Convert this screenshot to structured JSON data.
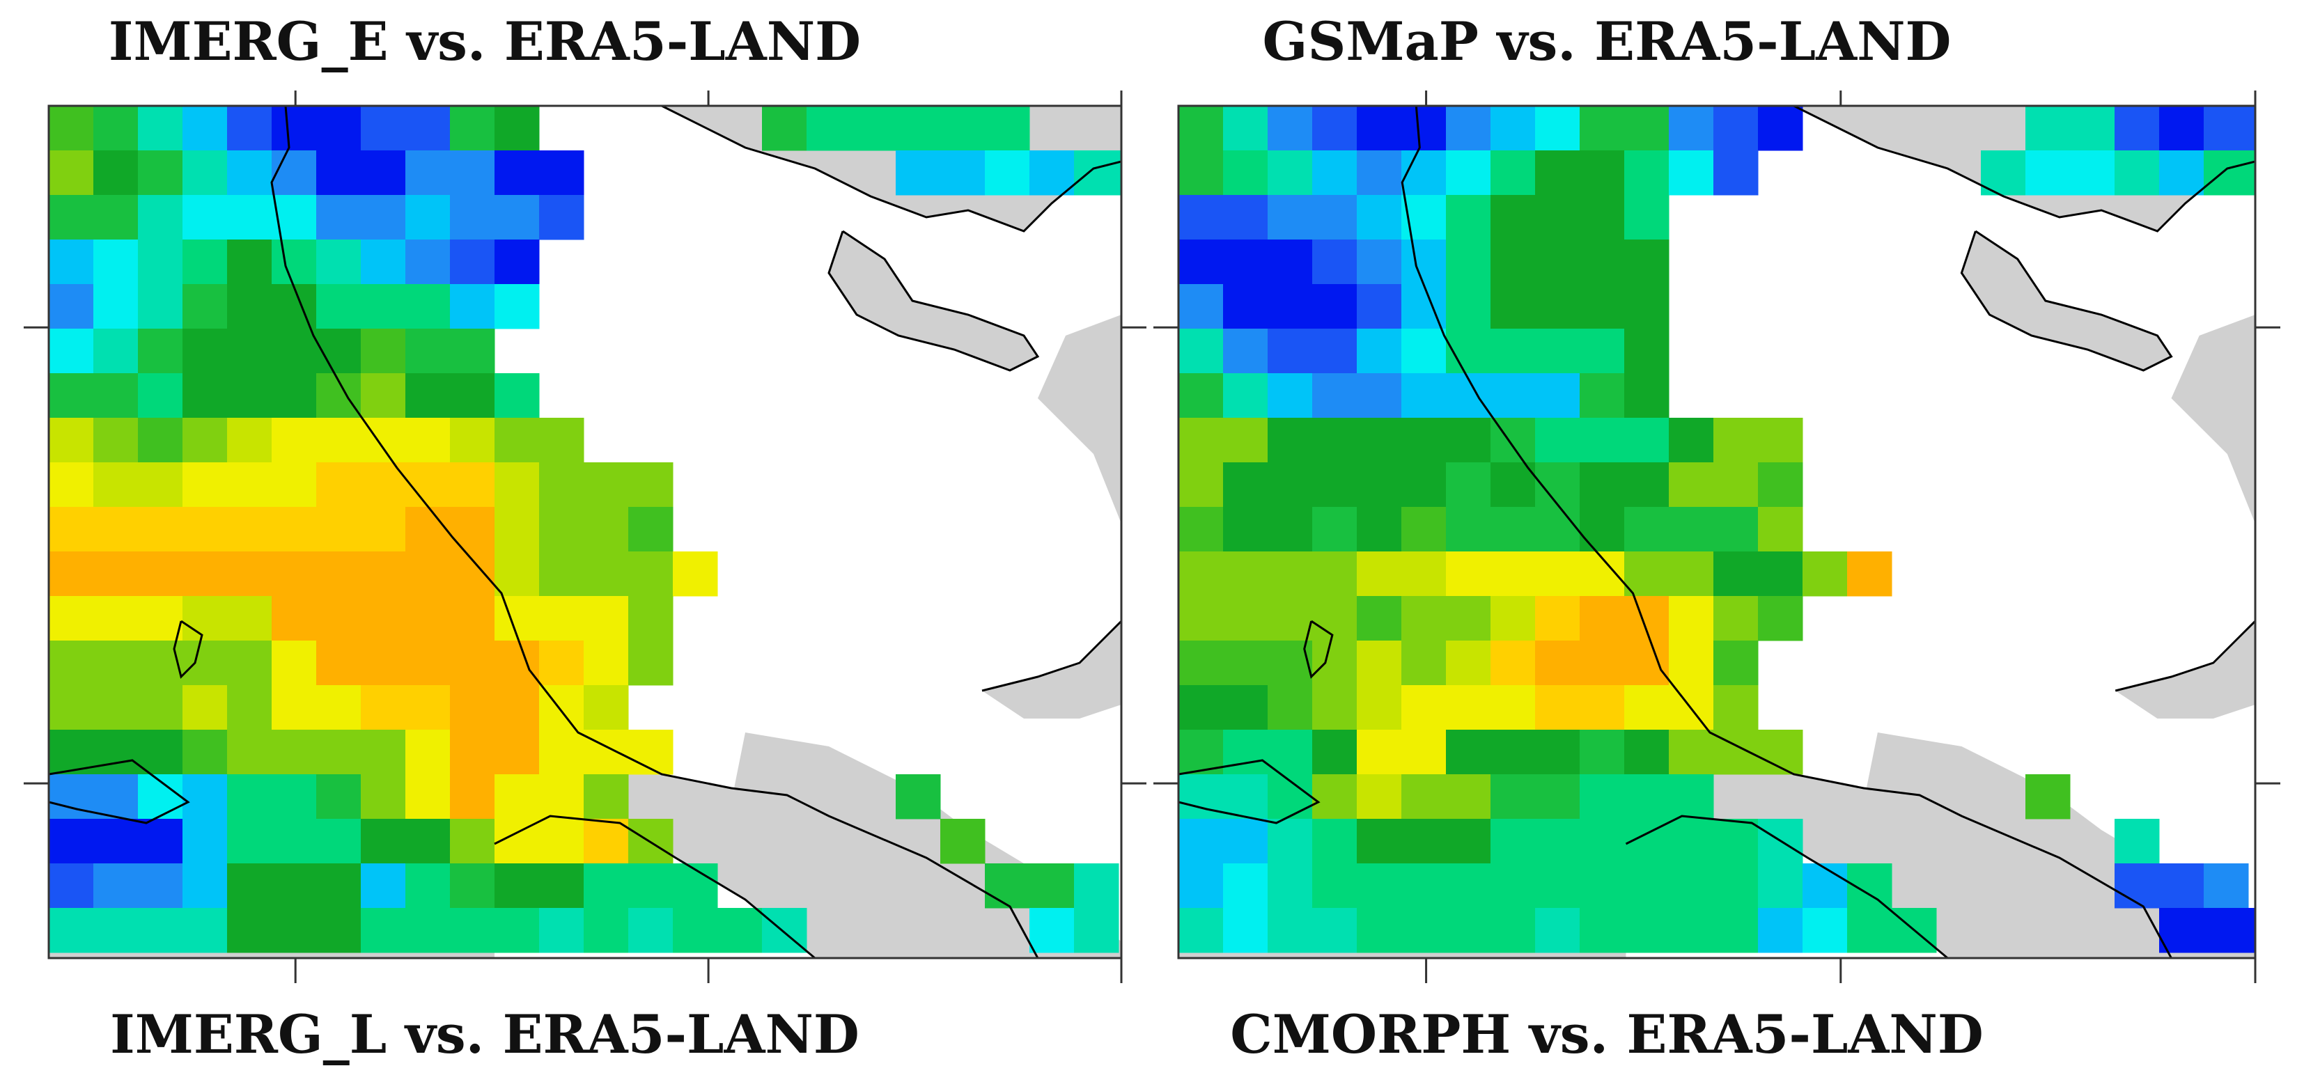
{
  "titles": {
    "top_left": "IMERG_E vs. ERA5-LAND",
    "top_right": "GSMaP vs. ERA5-LAND",
    "bottom_left": "IMERG_L vs. ERA5-LAND",
    "bottom_right": "CMORPH vs. ERA5-LAND"
  },
  "colors": {
    "land_gray": "#d0d0d0",
    "sea": "#ffffff",
    "coastline": "#000000",
    "frame": "#333333"
  },
  "palette": {
    "B": "#0018f0",
    "b": "#1a55f5",
    "m": "#1e8cf5",
    "c": "#00c4f8",
    "s": "#00f0f0",
    "t": "#00e0b0",
    "a": "#00d87a",
    "g": "#18c040",
    "G": "#10a828",
    "l": "#40c020",
    "L": "#80d010",
    "y": "#c8e400",
    "Y": "#f0f000",
    "o": "#ffd000",
    "O": "#ffb000"
  },
  "map_panels": [
    {
      "name": "imerg-e-imerg-l",
      "grid": [
        "lgtcbBBbbgG.....gaaaaa",
        "LGgtcmBBmmBB.......ccsctt",
        "ggtsssmmcmmb.........",
        "cstaGatcmbB..........",
        "mstgGGaaacs..........",
        "stgGGGGlgg...........",
        "ggaGGGlLGGa..........",
        "yLlLyYYYYyLL.........",
        "YyyYYYooooyLLL.......",
        "ooooooooOOyLLl.......",
        "OOOOOOOOOOyLLLY......",
        "YYYyyOOOOOYYYL.......",
        "LLLLLYOOOOOoYL.......",
        "LLLyLYYooOOYy........",
        "GGGlLLLLYOOYYY.......",
        "mmscaagLYOYYL......g.",
        "BBBcaaaGGLYYoL......l.",
        "bmmcGGGcagGGaaa......ggt",
        "ttttGGGaaaatataat.....st"
      ]
    },
    {
      "name": "gsmap-cmorph",
      "grid": [
        "gtmbBBmcsggmbB.....ttbBbbm",
        "gatcmcsaGGasb.....tsstcaat",
        "bbmmcsaGGGa...........",
        "BBBbmcaGGGG..........",
        "mBBBbcaGGGG..........",
        "tmbbcsaaaaG..........",
        "gtcmmccccgG..........",
        "LLGGGGGgaaaGLL.......",
        "LGGGGGgGgGGLLl.......",
        "lGGgGlgggGgggL.......",
        "LLLLyyYYYYLLGGLO.....",
        "LLLLlLLyoOOYLl.......",
        "lllLyLyoOOOYl........",
        "GGlLyYYYooYYL........",
        "gaaGYYGGGgGLLL.......",
        "ttaLyLLggaaa.......l.",
        "cctaGGGaaaaaat.......t.",
        "cstaaaaaaaaaatca.....bbm",
        "tsttaaaataaaacsaa.....BBB"
      ]
    }
  ]
}
